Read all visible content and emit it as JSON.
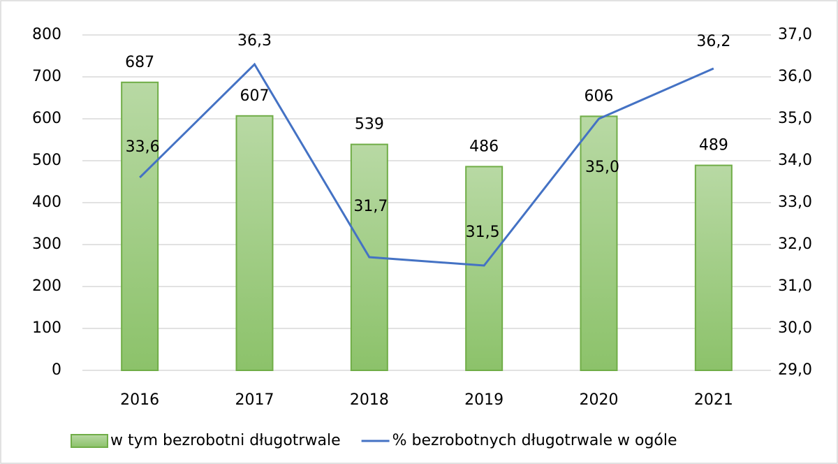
{
  "chart_data": {
    "type": "combo",
    "categories": [
      "2016",
      "2017",
      "2018",
      "2019",
      "2020",
      "2021"
    ],
    "series": [
      {
        "name": "w tym bezrobotni długotrwale",
        "type": "bar",
        "color": "#70ad47",
        "values": [
          687,
          607,
          539,
          486,
          606,
          489
        ]
      },
      {
        "name": "% bezrobotnych długotrwale w ogóle",
        "type": "line",
        "axis": "y2",
        "color": "#4472c4",
        "values": [
          33.6,
          36.3,
          31.7,
          31.5,
          35.0,
          36.2
        ],
        "value_labels": [
          "33,6",
          "36,3",
          "31,7",
          "31,5",
          "35,0",
          "36,2"
        ]
      }
    ],
    "ylim": [
      0,
      800
    ],
    "yticks": [
      0,
      100,
      200,
      300,
      400,
      500,
      600,
      700,
      800
    ],
    "y2lim": [
      29,
      37
    ],
    "y2ticks": [
      {
        "value": 29,
        "label": "29,0"
      },
      {
        "value": 30,
        "label": "30,0"
      },
      {
        "value": 31,
        "label": "31,0"
      },
      {
        "value": 32,
        "label": "32,0"
      },
      {
        "value": 33,
        "label": "33,0"
      },
      {
        "value": 34,
        "label": "34,0"
      },
      {
        "value": 35,
        "label": "35,0"
      },
      {
        "value": 36,
        "label": "36,0"
      },
      {
        "value": 37,
        "label": "37,0"
      }
    ],
    "grid": true,
    "legend": "bottom"
  }
}
